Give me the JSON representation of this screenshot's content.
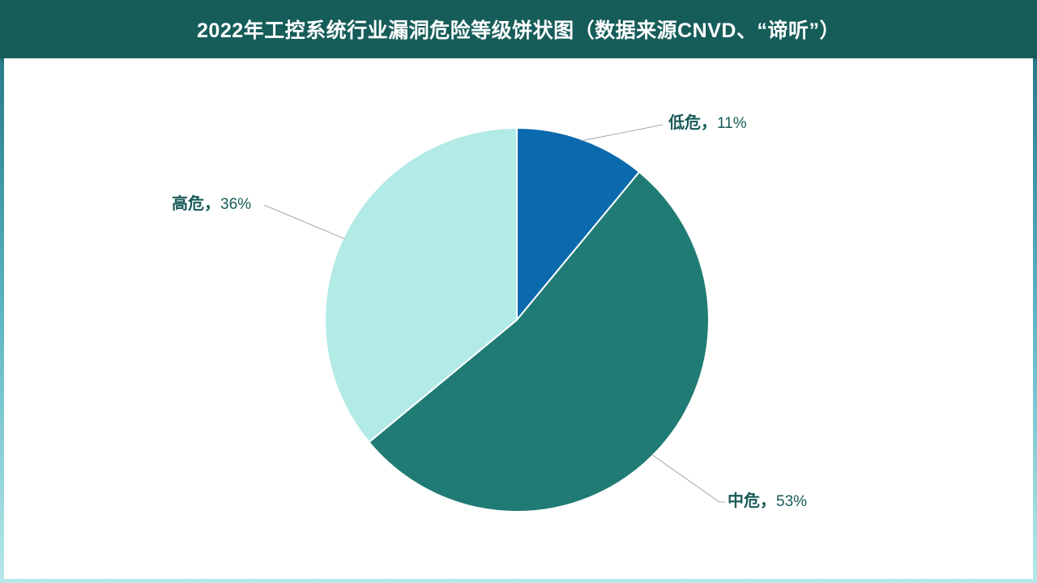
{
  "header": {
    "title": "2022年工控系统行业漏洞危险等级饼状图（数据来源CNVD、“谛听”）"
  },
  "chart_data": {
    "type": "pie",
    "title": "2022年工控系统行业漏洞危险等级饼状图（数据来源CNVD、“谛听”）",
    "slices": [
      {
        "name": "低危",
        "value": 11,
        "label_value": "11%",
        "color": "#0b6aad"
      },
      {
        "name": "中危",
        "value": 53,
        "label_value": "53%",
        "color": "#207b74"
      },
      {
        "name": "高危",
        "value": 36,
        "label_value": "36%",
        "color": "#b2eae6"
      }
    ],
    "label_color": "#185b58",
    "separator": "，"
  }
}
